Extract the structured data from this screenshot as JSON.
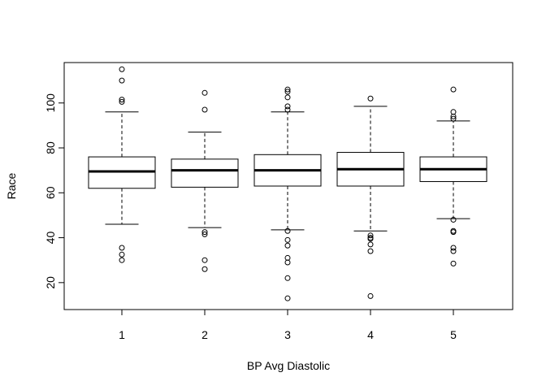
{
  "chart_data": {
    "type": "boxplot",
    "title": "",
    "xlabel": "BP Avg Diastolic",
    "ylabel": "Race",
    "categories": [
      "1",
      "2",
      "3",
      "4",
      "5"
    ],
    "ylim": [
      8,
      118
    ],
    "yticks": [
      20,
      40,
      60,
      80,
      100
    ],
    "yticks_labels": [
      "20",
      "40",
      "60",
      "80",
      "100"
    ],
    "grid": false,
    "legend": "none",
    "boxes": [
      {
        "category": "1",
        "whisker_low": 46,
        "q1": 62,
        "median": 69.5,
        "q3": 76,
        "whisker_high": 96,
        "outliers": [
          115,
          110,
          101.5,
          100.5,
          35.5,
          32.5,
          30
        ]
      },
      {
        "category": "2",
        "whisker_low": 44.5,
        "q1": 62.5,
        "median": 70,
        "q3": 75,
        "whisker_high": 87,
        "outliers": [
          104.5,
          97,
          42.5,
          41.5,
          30,
          26
        ]
      },
      {
        "category": "3",
        "whisker_low": 43.5,
        "q1": 63,
        "median": 70,
        "q3": 77,
        "whisker_high": 96,
        "outliers": [
          106,
          105,
          102.5,
          98.5,
          97,
          43,
          39,
          36.5,
          31,
          29,
          22,
          13
        ]
      },
      {
        "category": "4",
        "whisker_low": 43,
        "q1": 63,
        "median": 70.5,
        "q3": 78,
        "whisker_high": 98.5,
        "outliers": [
          102,
          41,
          40,
          39.5,
          37,
          34,
          14
        ]
      },
      {
        "category": "5",
        "whisker_low": 48.5,
        "q1": 65,
        "median": 70.5,
        "q3": 76,
        "whisker_high": 92,
        "outliers": [
          106,
          96,
          94,
          93,
          48,
          43,
          42.5,
          35.5,
          34,
          28.5
        ]
      }
    ],
    "colors": {
      "stroke": "#000000",
      "background": "#ffffff"
    }
  }
}
